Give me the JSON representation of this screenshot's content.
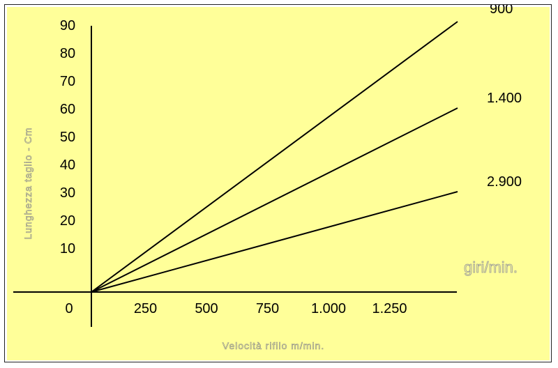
{
  "chart_data": {
    "type": "line",
    "title": "",
    "xlabel": "Velocità rifilo m/min.",
    "ylabel": "Lunghezza taglio - Cm",
    "unit_label": "giri/min.",
    "x_ticks": [
      "0",
      "250",
      "500",
      "750",
      "1.000",
      "1.250"
    ],
    "x_tick_values": [
      0,
      250,
      500,
      750,
      1000,
      1250
    ],
    "y_ticks": [
      "10",
      "20",
      "30",
      "40",
      "50",
      "60",
      "70",
      "80",
      "90"
    ],
    "y_tick_values": [
      10,
      20,
      30,
      40,
      50,
      60,
      70,
      80,
      90
    ],
    "xlim": [
      0,
      1500
    ],
    "ylim": [
      0,
      100
    ],
    "grid": false,
    "series": [
      {
        "name": "900",
        "x": [
          0,
          1500
        ],
        "y": [
          0,
          97
        ]
      },
      {
        "name": "1.400",
        "x": [
          0,
          1500
        ],
        "y": [
          0,
          66
        ]
      },
      {
        "name": "2.900",
        "x": [
          0,
          1500
        ],
        "y": [
          0,
          36
        ]
      }
    ],
    "colors": {
      "background": "#ffff99",
      "lines": "#000000"
    }
  }
}
